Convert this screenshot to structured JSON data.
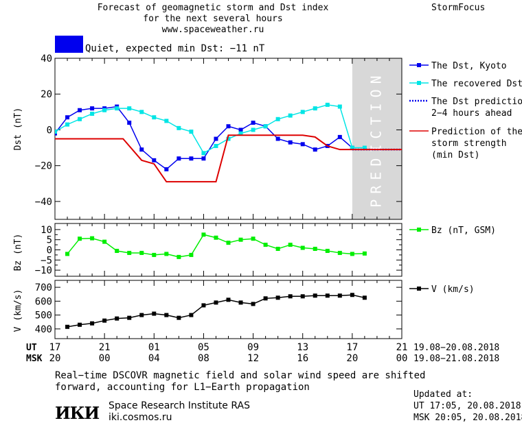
{
  "header": {
    "title_lines": [
      "Forecast of geomagnetic storm and Dst index",
      "for the next several hours",
      "www.spaceweather.ru"
    ],
    "brand": "StormFocus",
    "status_text": "Quiet, expected min Dst: −11 nT",
    "status_color": "#0000ee"
  },
  "axes": {
    "x_ut_label": "UT",
    "x_msk_label": "MSK",
    "x_ut_ticks": [
      "17",
      "21",
      "01",
      "05",
      "09",
      "13",
      "17",
      "21"
    ],
    "x_msk_ticks": [
      "20",
      "00",
      "04",
      "08",
      "12",
      "16",
      "20",
      "00"
    ],
    "date_ut": "19.08−20.08.2018",
    "date_msk": "19.08−21.08.2018"
  },
  "chart_data": [
    {
      "type": "line",
      "ylabel": "Dst (nT)",
      "ylim": [
        -50,
        40
      ],
      "yticks": [
        40,
        20,
        0,
        -20,
        -40
      ],
      "xlim_hours": [
        0,
        28
      ],
      "prediction_label": "PREDICTION",
      "prediction_range_hours": [
        24,
        28
      ],
      "series": [
        {
          "name": "The Dst, Kyoto",
          "color": "#0000ee",
          "marker": "square",
          "x": [
            0,
            1,
            2,
            3,
            4,
            5,
            6,
            7,
            8,
            9,
            10,
            11,
            12,
            13,
            14,
            15,
            16,
            17,
            18,
            19,
            20,
            21,
            22,
            23,
            24
          ],
          "y": [
            -2,
            7,
            11,
            12,
            12,
            13,
            4,
            -11,
            -17,
            -22,
            -16,
            -16,
            -16,
            -5,
            2,
            0,
            4,
            2,
            -5,
            -7,
            -8,
            -11,
            -9,
            -4,
            -10
          ]
        },
        {
          "name": "The recovered Dst",
          "color": "#00e5e5",
          "marker": "square",
          "x": [
            0,
            1,
            2,
            3,
            4,
            5,
            6,
            7,
            8,
            9,
            10,
            11,
            12,
            13,
            14,
            15,
            16,
            17,
            18,
            19,
            20,
            21,
            22,
            23,
            24,
            25
          ],
          "y": [
            -1,
            3,
            6,
            9,
            11,
            12,
            12,
            10,
            7,
            5,
            1,
            -1,
            -13,
            -9,
            -5,
            -2,
            0,
            2,
            6,
            8,
            10,
            12,
            14,
            13,
            -10,
            -10
          ]
        },
        {
          "name": "The Dst prediction\n2−4 hours ahead",
          "color": "#0000ee",
          "style": "dotted",
          "x": [
            24,
            25,
            26,
            27,
            28
          ],
          "y": [
            -11,
            -11,
            -11,
            -11,
            -11
          ]
        },
        {
          "name": "Prediction of the\nstorm strength\n(min Dst)",
          "color": "#dd0000",
          "style": "step",
          "x": [
            0,
            5.2,
            5.5,
            7,
            8,
            9,
            12,
            13,
            14,
            17,
            18,
            19,
            20,
            21,
            22,
            23,
            24,
            28
          ],
          "y": [
            -5,
            -5,
            -5,
            -17,
            -19,
            -29,
            -29,
            -29,
            -3,
            -3,
            -3,
            -3,
            -3,
            -4,
            -9,
            -11,
            -11,
            -11
          ]
        }
      ]
    },
    {
      "type": "line",
      "ylabel": "Bz (nT)",
      "ylim": [
        -13,
        13
      ],
      "yticks": [
        10,
        5,
        0,
        -5,
        -10
      ],
      "series": [
        {
          "name": "Bz (nT, GSM)",
          "color": "#00ee00",
          "marker": "square",
          "x": [
            1,
            2,
            3,
            4,
            5,
            6,
            7,
            8,
            9,
            10,
            11,
            12,
            13,
            14,
            15,
            16,
            17,
            18,
            19,
            20,
            21,
            22,
            23,
            24,
            25
          ],
          "y": [
            -2,
            5.5,
            5.7,
            4,
            -0.5,
            -1.5,
            -1.5,
            -2.5,
            -2,
            -3.5,
            -2.5,
            7.5,
            6,
            3.5,
            5,
            5.5,
            2.5,
            0.5,
            2.5,
            1,
            0.5,
            -0.5,
            -1.5,
            -2,
            -1.8
          ]
        }
      ]
    },
    {
      "type": "line",
      "ylabel": "V (km/s)",
      "ylim": [
        330,
        750
      ],
      "yticks": [
        700,
        600,
        500,
        400
      ],
      "series": [
        {
          "name": "V (km/s)",
          "color": "#000000",
          "marker": "square",
          "x": [
            1,
            2,
            3,
            4,
            5,
            6,
            7,
            8,
            9,
            10,
            11,
            12,
            13,
            14,
            15,
            16,
            17,
            18,
            19,
            20,
            21,
            22,
            23,
            24,
            25
          ],
          "y": [
            415,
            430,
            440,
            460,
            475,
            480,
            500,
            510,
            500,
            480,
            500,
            570,
            590,
            610,
            590,
            580,
            620,
            625,
            635,
            635,
            640,
            640,
            640,
            645,
            625
          ]
        }
      ]
    }
  ],
  "footer": {
    "note_lines": [
      "Real−time DSCOVR magnetic field and solar wind speed are shifted",
      "forward, accounting for L1−Earth propagation"
    ],
    "updated_label": "Updated at:",
    "updated_ut": "UT   17:05, 20.08.2018",
    "updated_msk": "MSK 20:05, 20.08.2018",
    "logo_text": "ИКИ",
    "institute": "Space Research Institute RAS",
    "site": "iki.cosmos.ru"
  }
}
